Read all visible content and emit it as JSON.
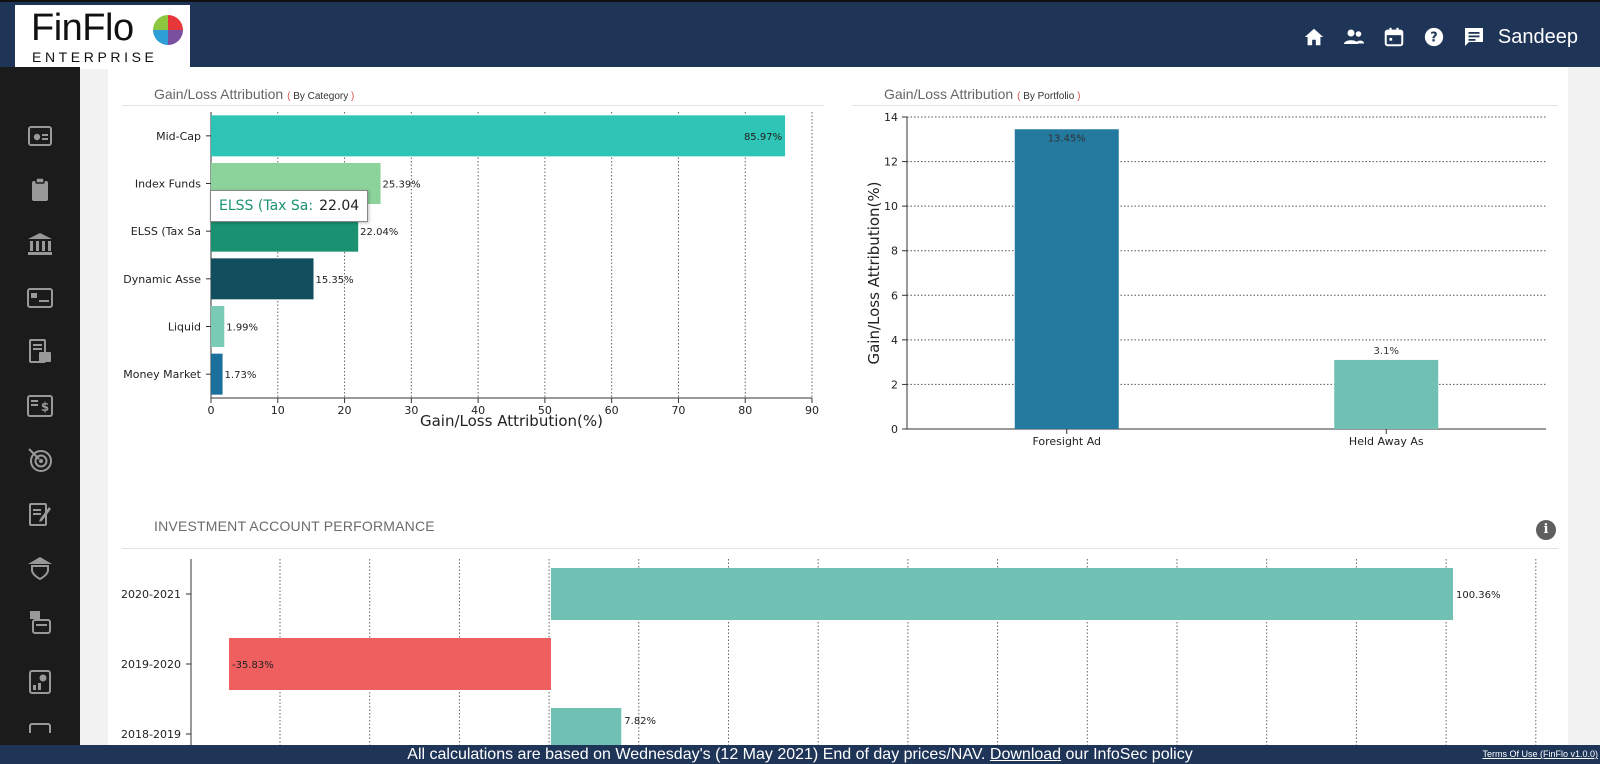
{
  "app": {
    "brand": "FinFlo",
    "sub": "ENTERPRISE",
    "user": "Sandeep"
  },
  "topbar": {
    "icons": [
      "home-icon",
      "people-icon",
      "calendar-icon",
      "help-icon",
      "chat-icon"
    ]
  },
  "sidebar": {
    "icons": [
      "dashboard-icon",
      "clipboard-icon",
      "bank-icon",
      "card-icon",
      "report-icon",
      "dollar-icon",
      "goal-icon",
      "edit-icon",
      "insurance-icon",
      "tools-icon",
      "portfolio-icon",
      "more-icon"
    ]
  },
  "panels": {
    "category": {
      "title": "Gain/Loss Attribution",
      "qualifier": "By Category"
    },
    "portfolio": {
      "title": "Gain/Loss Attribution",
      "qualifier": "By Portfolio"
    },
    "performance": {
      "title": "INVESTMENT ACCOUNT PERFORMANCE"
    }
  },
  "tooltip": {
    "label": "ELSS (Tax Sa:",
    "value": "22.04"
  },
  "footer": {
    "pre": "All calculations are based on Wednesday's (12 May 2021) End of day prices/NAV.",
    "link": "Download",
    "post": "our InfoSec policy",
    "terms": "Terms Of Use (FinFlo v1.0.0)"
  },
  "chart_data": [
    {
      "type": "bar",
      "orientation": "horizontal",
      "title": "Gain/Loss Attribution (By Category)",
      "categories": [
        "Mid-Cap",
        "Index Funds",
        "ELSS (Tax Sa",
        "Dynamic Asse",
        "Liquid",
        "Money Market"
      ],
      "values": [
        85.97,
        25.39,
        22.04,
        15.35,
        1.99,
        1.73
      ],
      "labels": [
        "85.97%",
        "25.39%",
        "22.04%",
        "15.35%",
        "1.99%",
        "1.73%"
      ],
      "colors": [
        "#2ec4b6",
        "#8cd29b",
        "#1a9271",
        "#124f5e",
        "#79cbb6",
        "#1b6f9c"
      ],
      "xlabel": "Gain/Loss Attribution(%)",
      "xlim": [
        0,
        90
      ],
      "xticks": [
        0,
        10,
        20,
        30,
        40,
        50,
        60,
        70,
        80,
        90
      ]
    },
    {
      "type": "bar",
      "orientation": "vertical",
      "title": "Gain/Loss Attribution (By Portfolio)",
      "categories": [
        "Foresight Ad",
        "Held Away As"
      ],
      "values": [
        13.45,
        3.1
      ],
      "labels": [
        "13.45%",
        "3.1%"
      ],
      "colors": [
        "#23799e",
        "#70c1b3"
      ],
      "ylabel": "Gain/Loss Attribution(%)",
      "ylim": [
        0,
        14
      ],
      "yticks": [
        0,
        2,
        4,
        6,
        8,
        10,
        12,
        14
      ]
    },
    {
      "type": "bar",
      "orientation": "horizontal",
      "title": "INVESTMENT ACCOUNT PERFORMANCE",
      "categories": [
        "2020-2021",
        "2019-2020",
        "2018-2019"
      ],
      "values": [
        100.36,
        -35.83,
        7.82
      ],
      "labels": [
        "100.36%",
        "-35.83%",
        "7.82%"
      ],
      "positive_color": "#70c1b3",
      "negative_color": "#f05f5f",
      "xlim": [
        -40,
        110
      ]
    }
  ]
}
